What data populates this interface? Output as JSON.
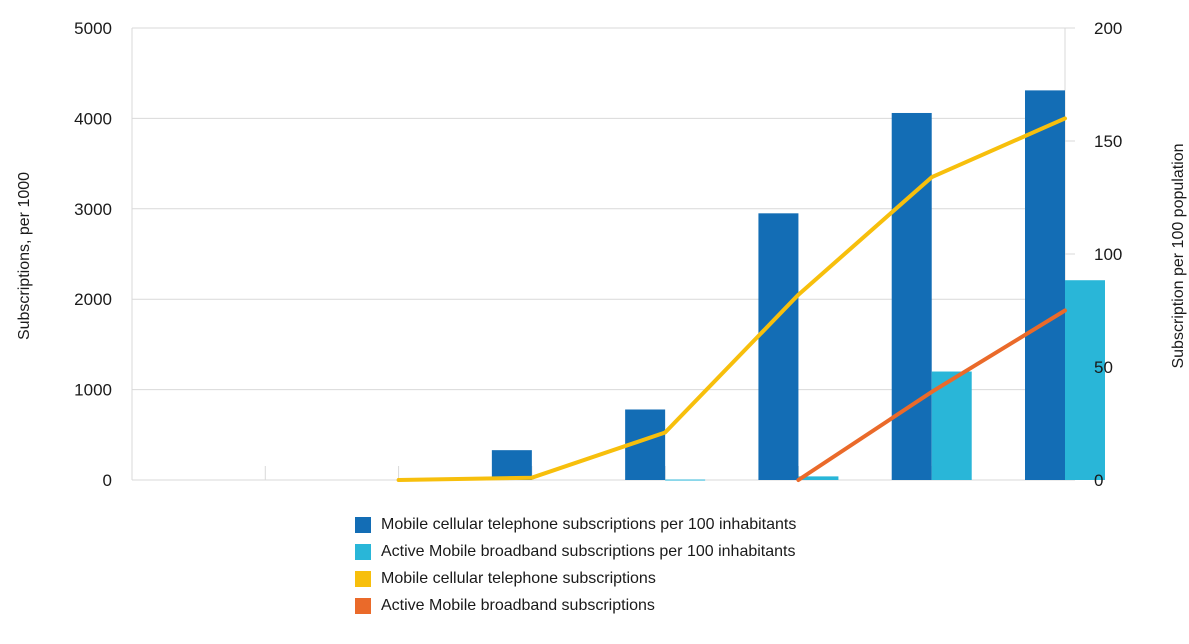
{
  "chart_data": {
    "type": "bar",
    "categories": [
      "",
      "",
      "",
      "",
      "",
      "",
      ""
    ],
    "series": [
      {
        "name": "Mobile cellular telephone subscriptions per 100 inhabitants",
        "kind": "bar",
        "axis": "left",
        "color": "#136db5",
        "values": [
          null,
          null,
          330,
          780,
          2950,
          4060,
          4310
        ]
      },
      {
        "name": "Active Mobile broadband subscriptions per 100 inhabitants",
        "kind": "bar",
        "axis": "left",
        "color": "#29b6d8",
        "values": [
          null,
          null,
          null,
          5,
          40,
          1200,
          2210
        ]
      },
      {
        "name": "Mobile cellular telephone subscriptions",
        "kind": "line",
        "axis": "right",
        "color": "#f7bf0c",
        "values": [
          null,
          0,
          1,
          21,
          82,
          134,
          160
        ]
      },
      {
        "name": "Active Mobile broadband subscriptions",
        "kind": "line",
        "axis": "right",
        "color": "#ea6a2a",
        "values": [
          null,
          null,
          null,
          null,
          0,
          39,
          75
        ]
      }
    ],
    "ylabel": "Subscriptions, per 1000",
    "ylim": [
      0,
      5000
    ],
    "yticks": [
      "0",
      "1000",
      "2000",
      "3000",
      "4000",
      "5000"
    ],
    "y2label": "Subscription per 100 population",
    "y2lim": [
      0,
      200
    ],
    "y2ticks": [
      "0",
      "50",
      "100",
      "150",
      "200"
    ],
    "grid": true,
    "legend_position": "bottom"
  }
}
